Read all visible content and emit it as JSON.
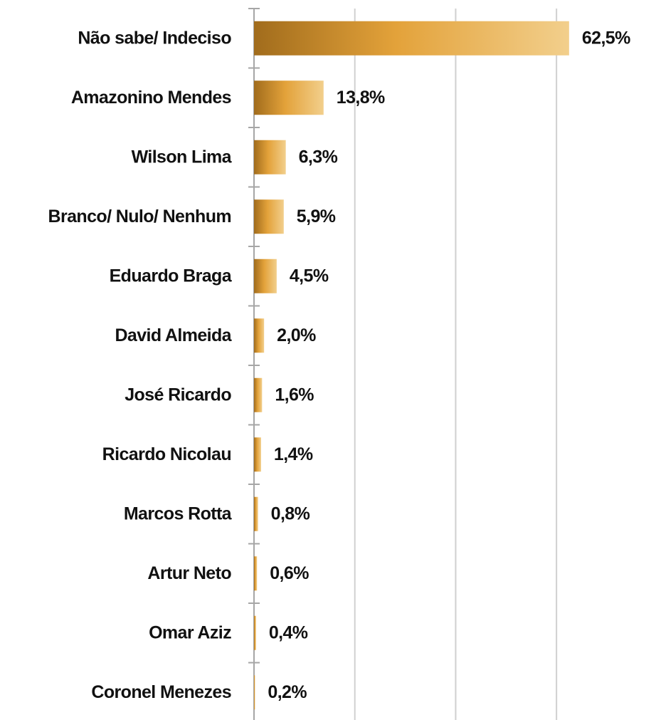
{
  "chart_data": {
    "type": "barh",
    "categories": [
      "Não sabe/ Indeciso",
      "Amazonino Mendes",
      "Wilson Lima",
      "Branco/ Nulo/ Nenhum",
      "Eduardo Braga",
      "David Almeida",
      "José Ricardo",
      "Ricardo Nicolau",
      "Marcos Rotta",
      "Artur Neto",
      "Omar Aziz",
      "Coronel Menezes"
    ],
    "values": [
      62.5,
      13.8,
      6.3,
      5.9,
      4.5,
      2.0,
      1.6,
      1.4,
      0.8,
      0.6,
      0.4,
      0.2
    ],
    "value_labels": [
      "62,5%",
      "13,8%",
      "6,3%",
      "5,9%",
      "4,5%",
      "2,0%",
      "1,6%",
      "1,4%",
      "0,8%",
      "0,6%",
      "0,4%",
      "0,2%"
    ],
    "color": "#e3a23a",
    "xlim": [
      0,
      70
    ],
    "xticks": [
      0,
      20,
      40,
      60
    ],
    "grid": true
  }
}
